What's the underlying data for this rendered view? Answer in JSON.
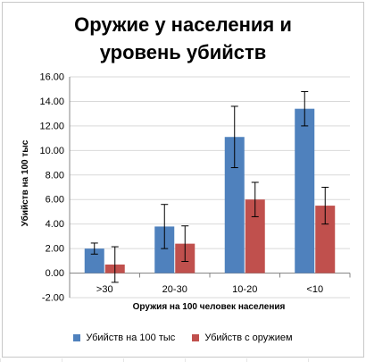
{
  "chart_data": {
    "type": "bar",
    "title_lines": [
      "Оружие у населения и",
      "уровень убийств"
    ],
    "xlabel": "Оружия на 100 человек населения",
    "ylabel": "Убийств  на 100 тыс",
    "categories": [
      ">30",
      "20-30",
      "10-20",
      "<10"
    ],
    "ylim": [
      -2.0,
      16.0
    ],
    "yticks": [
      "-2.00",
      "0.00",
      "2.00",
      "4.00",
      "6.00",
      "8.00",
      "10.00",
      "12.00",
      "14.00",
      "16.00"
    ],
    "grid": true,
    "legend_position": "bottom",
    "series": [
      {
        "name": "Убийств на 100 тыс",
        "color": "#4f81bd",
        "values": [
          2.0,
          3.8,
          11.1,
          13.4
        ],
        "error": [
          0.45,
          1.8,
          2.5,
          1.4
        ]
      },
      {
        "name": "Убийств с оружием",
        "color": "#c0504d",
        "values": [
          0.7,
          2.4,
          6.0,
          5.5
        ],
        "error": [
          1.45,
          1.45,
          1.4,
          1.5
        ]
      }
    ]
  }
}
